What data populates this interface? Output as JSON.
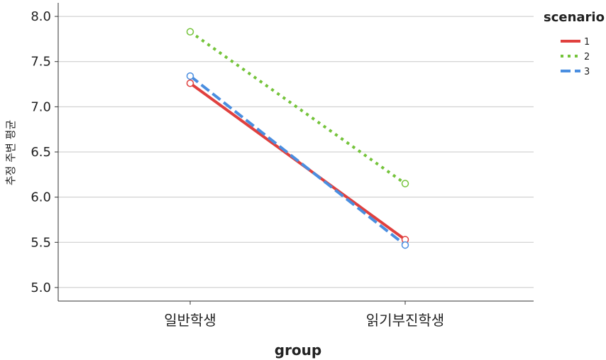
{
  "chart_data": {
    "type": "line",
    "title": "",
    "xlabel": "group",
    "ylabel": "추정 주변 평균",
    "categories": [
      "일반학생",
      "읽기부진학생"
    ],
    "ylim": [
      4.85,
      8.15
    ],
    "yticks": [
      "5.0",
      "5.5",
      "6.0",
      "6.5",
      "7.0",
      "7.5",
      "8.0"
    ],
    "grid": true,
    "legend": {
      "title": "scenario",
      "placement": "top-right"
    },
    "series": [
      {
        "name": "1",
        "values": [
          7.26,
          5.53
        ],
        "color": "#e0403e",
        "dash": "solid"
      },
      {
        "name": "2",
        "values": [
          7.83,
          6.15
        ],
        "color": "#74c33a",
        "dash": "dotted"
      },
      {
        "name": "3",
        "values": [
          7.34,
          5.47
        ],
        "color": "#4a8ee0",
        "dash": "dashed"
      }
    ]
  }
}
